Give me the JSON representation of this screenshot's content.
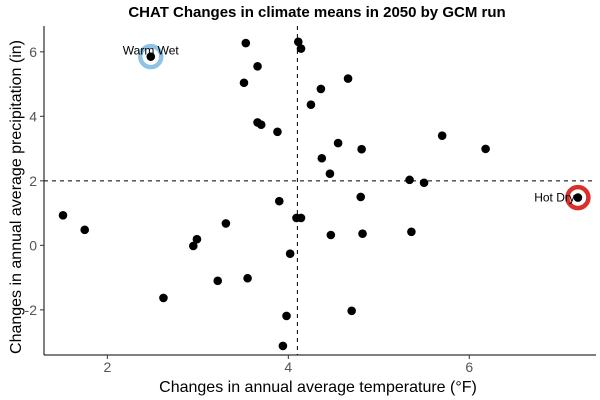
{
  "chart_data": {
    "type": "scatter",
    "title": "CHAT Changes in climate means in 2050 by GCM run",
    "xlabel": "Changes in annual average temperature (°F)",
    "ylabel": "Changes in annual average precipitation (in)",
    "xlim": [
      1.3,
      7.4
    ],
    "ylim": [
      -3.4,
      6.8
    ],
    "x_ticks": [
      2,
      4,
      6
    ],
    "y_ticks": [
      -2,
      0,
      2,
      4,
      6
    ],
    "x_tick_labels": [
      "2",
      "4",
      "6"
    ],
    "y_tick_labels": [
      "-2",
      "0",
      "2",
      "4",
      "6"
    ],
    "grid": false,
    "reference_lines": {
      "x": 4.1,
      "y": 2.0,
      "style": "dashed"
    },
    "points": [
      {
        "x": 2.48,
        "y": 5.85
      },
      {
        "x": 3.53,
        "y": 6.27
      },
      {
        "x": 4.11,
        "y": 6.31
      },
      {
        "x": 4.14,
        "y": 6.1
      },
      {
        "x": 3.66,
        "y": 5.55
      },
      {
        "x": 3.51,
        "y": 5.04
      },
      {
        "x": 4.66,
        "y": 5.17
      },
      {
        "x": 4.36,
        "y": 4.85
      },
      {
        "x": 4.25,
        "y": 4.36
      },
      {
        "x": 3.66,
        "y": 3.81
      },
      {
        "x": 3.7,
        "y": 3.74
      },
      {
        "x": 3.88,
        "y": 3.52
      },
      {
        "x": 4.55,
        "y": 3.17
      },
      {
        "x": 4.37,
        "y": 2.7
      },
      {
        "x": 4.81,
        "y": 2.98
      },
      {
        "x": 4.46,
        "y": 2.22
      },
      {
        "x": 5.7,
        "y": 3.4
      },
      {
        "x": 6.18,
        "y": 2.99
      },
      {
        "x": 5.34,
        "y": 2.03
      },
      {
        "x": 5.5,
        "y": 1.94
      },
      {
        "x": 4.8,
        "y": 1.5
      },
      {
        "x": 3.9,
        "y": 1.37
      },
      {
        "x": 4.09,
        "y": 0.85
      },
      {
        "x": 4.14,
        "y": 0.85
      },
      {
        "x": 3.31,
        "y": 0.68
      },
      {
        "x": 1.51,
        "y": 0.93
      },
      {
        "x": 1.75,
        "y": 0.48
      },
      {
        "x": 2.99,
        "y": 0.19
      },
      {
        "x": 2.95,
        "y": -0.02
      },
      {
        "x": 4.02,
        "y": -0.26
      },
      {
        "x": 4.47,
        "y": 0.32
      },
      {
        "x": 4.82,
        "y": 0.36
      },
      {
        "x": 5.36,
        "y": 0.42
      },
      {
        "x": 3.55,
        "y": -1.02
      },
      {
        "x": 3.22,
        "y": -1.1
      },
      {
        "x": 2.62,
        "y": -1.63
      },
      {
        "x": 4.7,
        "y": -2.03
      },
      {
        "x": 3.98,
        "y": -2.19
      },
      {
        "x": 3.94,
        "y": -3.12
      },
      {
        "x": 7.2,
        "y": 1.48
      }
    ],
    "annotations": [
      {
        "label": "Warm Wet",
        "x": 2.48,
        "y": 5.85,
        "ring_color": "#8ec3e6"
      },
      {
        "label": "Hot Dry",
        "x": 7.2,
        "y": 1.48,
        "ring_color": "#d9302c"
      }
    ]
  }
}
